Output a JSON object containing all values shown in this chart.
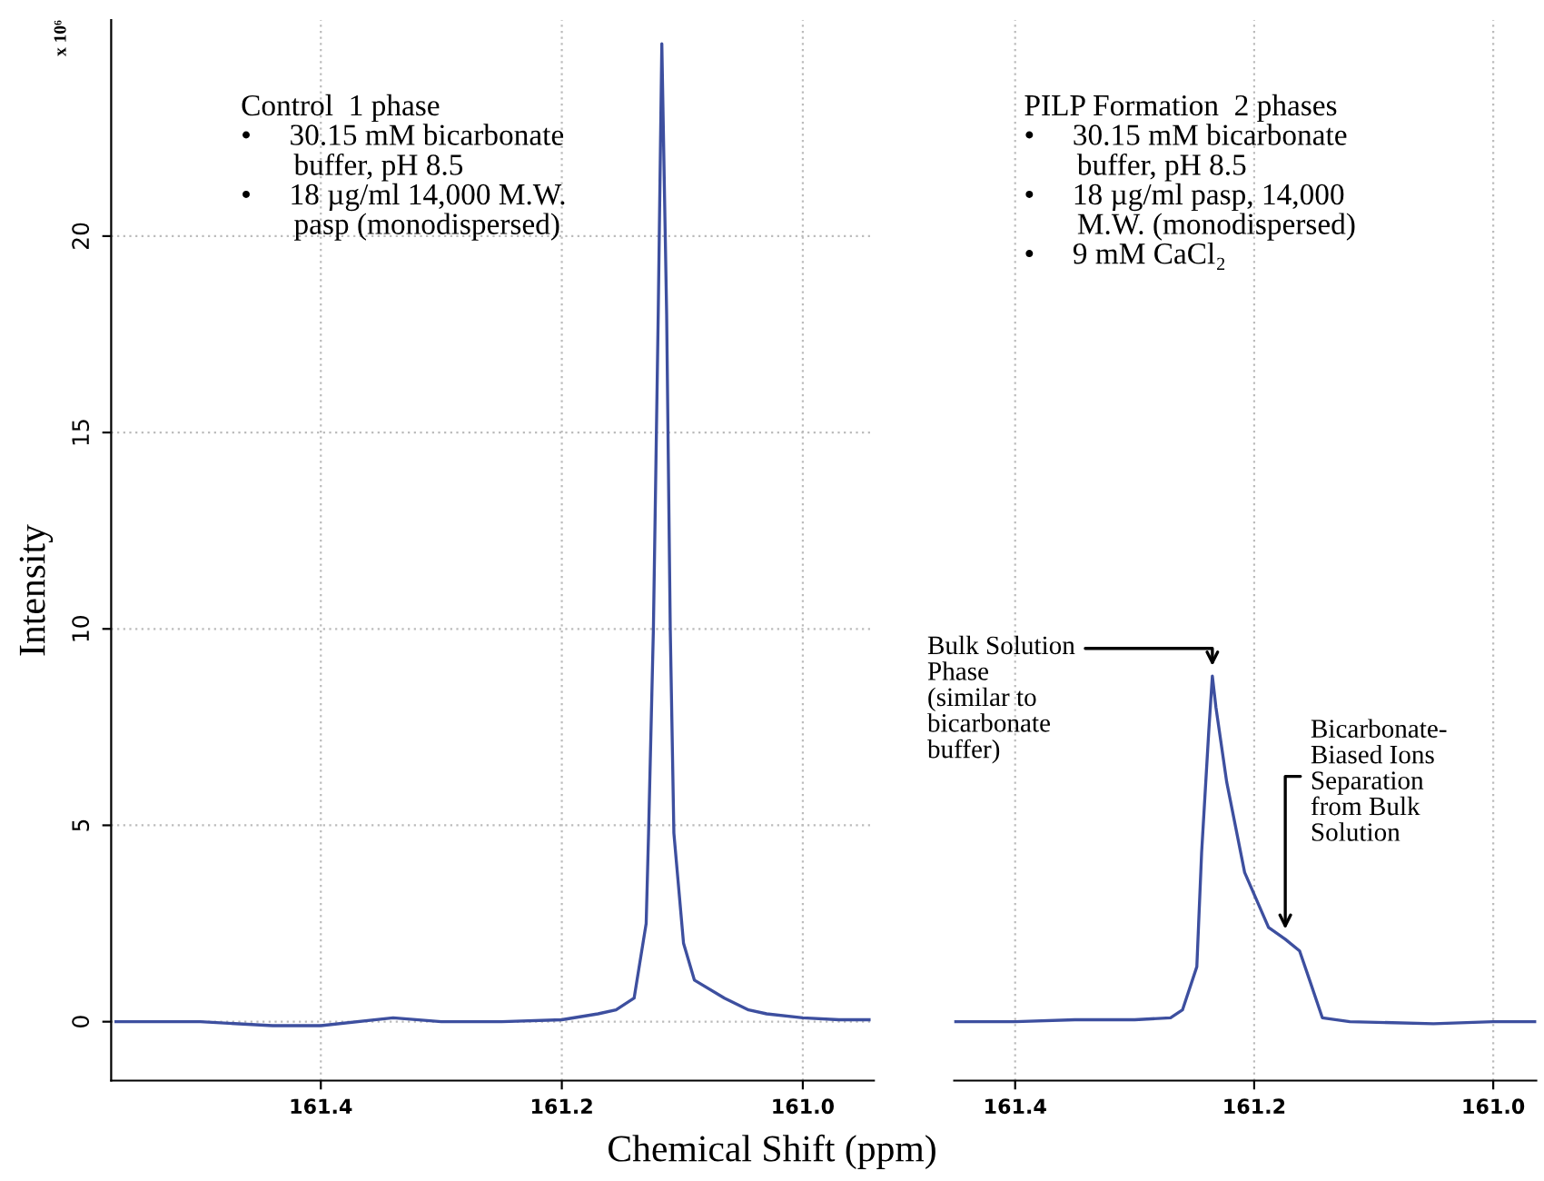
{
  "chart_data": [
    {
      "type": "line",
      "xlabel": "Chemical Shift (ppm)",
      "ylabel": "Intensity",
      "series": [
        {
          "color": "#3d4f9f",
          "x": [
            161.57,
            161.5,
            161.44,
            161.4,
            161.34,
            161.3,
            161.25,
            161.2,
            161.17,
            161.155,
            161.14,
            161.13,
            161.128,
            161.124,
            161.12,
            161.117,
            161.113,
            161.11,
            161.107,
            161.099,
            161.09,
            161.065,
            161.045,
            161.03,
            161.0,
            160.97,
            160.945
          ],
          "values": [
            0,
            0,
            -0.1,
            -0.1,
            0.1,
            0,
            0,
            0.05,
            0.2,
            0.3,
            0.6,
            2.5,
            4.8,
            10,
            18,
            24.9,
            18,
            10,
            4.8,
            2.0,
            1.06,
            0.6,
            0.3,
            0.2,
            0.1,
            0.05,
            0.05
          ]
        }
      ],
      "xlim": [
        161.574,
        160.941
      ],
      "xticks": [
        {
          "value": 161.4,
          "label": "161.4"
        },
        {
          "value": 161.2,
          "label": "161.2"
        },
        {
          "value": 161.0,
          "label": "161.0"
        }
      ],
      "ylim": [
        -1.5,
        25.5
      ],
      "yticks": [
        0,
        5,
        10,
        15,
        20
      ],
      "grid": true,
      "annotations": [
        "x 10⁶",
        "Control  1 phase\n•     30.15 mM bicarbonate\n       buffer, pH 8.5\n•     18 µg/ml 14,000 M.W.\n       pasp (monodispersed)"
      ]
    },
    {
      "type": "line",
      "tick_labels": "x",
      "series": [
        {
          "color": "#3d4f9f",
          "x": [
            161.45,
            161.4,
            161.35,
            161.3,
            161.27,
            161.26,
            161.248,
            161.244,
            161.238,
            161.235,
            161.232,
            161.223,
            161.208,
            161.188,
            161.174,
            161.162,
            161.153,
            161.143,
            161.12,
            161.05,
            161.0,
            160.965
          ],
          "values": [
            0,
            0,
            0.05,
            0.05,
            0.1,
            0.3,
            1.4,
            4.3,
            7.4,
            8.8,
            8.0,
            6.1,
            3.8,
            2.4,
            2.1,
            1.8,
            1.0,
            0.1,
            0,
            -0.05,
            0,
            0
          ]
        }
      ],
      "xlim": [
        161.451,
        160.964
      ],
      "xticks": [
        {
          "value": 161.4,
          "label": "161.4"
        },
        {
          "value": 161.2,
          "label": "161.2"
        },
        {
          "value": 161.0,
          "label": "161.0"
        }
      ],
      "ylim": [
        -1.5,
        25.5
      ],
      "grid": true,
      "annotations": [
        "PILP Formation  2 phases\n•     30.15 mM bicarbonate\n       buffer, pH 8.5\n•     18 µg/ml pasp, 14,000\n       M.W. (monodispersed)\n•     9 mM CaCl₂",
        {
          "text": "Bulk Solution\nPhase\n(similar to\nbicarbonate\nbuffer)",
          "x": 161.235,
          "y": 8.8
        },
        {
          "text": "Bicarbonate-\nBiased Ions\nSeparation\nfrom Bulk\nSolution",
          "x": 161.174,
          "y": 2.1
        }
      ]
    }
  ]
}
